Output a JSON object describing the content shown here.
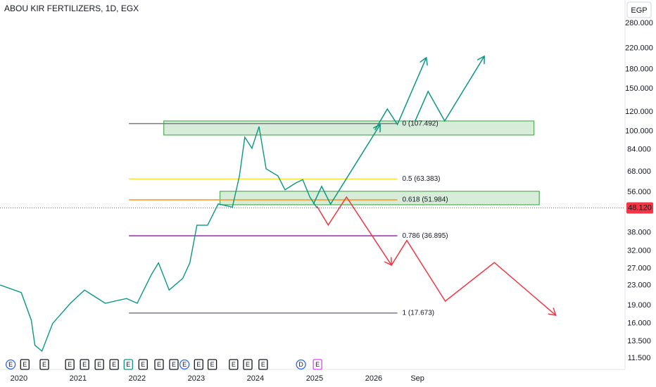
{
  "chart_data": {
    "type": "line",
    "title": "ABOU KIR FERTILIZERS, 1D, EGX",
    "currency": "EGP",
    "log_scale": true,
    "grid": false,
    "xlim": [
      2019.68,
      2030.25
    ],
    "xticks": [
      2020,
      2021,
      2022,
      2023,
      2024,
      2025,
      2026,
      {
        "value": 2026.74,
        "label": "Sep"
      }
    ],
    "ylim": [
      10.33,
      349
    ],
    "yticks": [
      {
        "value": 280,
        "label": "280.000"
      },
      {
        "value": 220,
        "label": "220.000"
      },
      {
        "value": 180,
        "label": "180.000"
      },
      {
        "value": 150,
        "label": "150.000"
      },
      {
        "value": 120,
        "label": "120.000"
      },
      {
        "value": 100,
        "label": "100.000"
      },
      {
        "value": 84,
        "label": "84.000"
      },
      {
        "value": 68,
        "label": "68.000"
      },
      {
        "value": 56,
        "label": "56.000"
      },
      {
        "value": 38,
        "label": "38.000"
      },
      {
        "value": 32,
        "label": "32.000"
      },
      {
        "value": 27,
        "label": "27.000"
      },
      {
        "value": 23,
        "label": "23.000"
      },
      {
        "value": 19,
        "label": "19.000"
      },
      {
        "value": 16,
        "label": "16.000"
      },
      {
        "value": 13.5,
        "label": "13.500"
      },
      {
        "value": 11.5,
        "label": "11.500"
      }
    ],
    "series": [
      {
        "color": "#089981",
        "x": [
          2019.68,
          2020.04,
          2020.21,
          2020.27,
          2020.39,
          2020.57,
          2020.87,
          2021.11,
          2021.46,
          2021.82,
          2022.0,
          2022.24,
          2022.36,
          2022.54,
          2022.77,
          2022.89,
          2023.01,
          2023.19,
          2023.37,
          2023.61,
          2023.73,
          2023.82,
          2023.94,
          2024.06,
          2024.18,
          2024.38,
          2024.5,
          2024.68,
          2024.8,
          2024.92,
          2025.04
        ],
        "values": [
          23.1,
          21.5,
          16.5,
          13.0,
          12.3,
          16,
          19.4,
          22,
          19.4,
          20.3,
          19.4,
          25.5,
          28.5,
          22,
          24.6,
          28.5,
          40.8,
          40.8,
          50,
          48.5,
          65.3,
          94.4,
          85,
          104.5,
          69.8,
          65.3,
          57.2,
          61,
          63,
          53.4,
          48.12
        ]
      }
    ],
    "last_price": {
      "value": 48.12,
      "label": "48.120",
      "color": "#f23645"
    },
    "fib_x": [
      2021.86,
      2026.4
    ],
    "fib_levels": [
      {
        "label": "0 (107.492)",
        "value": 107.492,
        "color": "#787b86"
      },
      {
        "label": "0.5 (63.383)",
        "value": 63.383,
        "color": "#f5e23a"
      },
      {
        "label": "0.618 (51.984)",
        "value": 51.984,
        "color": "#f7931a"
      },
      {
        "label": "0.786 (36.895)",
        "value": 36.895,
        "color": "#9c27b0"
      },
      {
        "label": "1 (17.673)",
        "value": 17.673,
        "color": "#787b86"
      }
    ],
    "zones": [
      {
        "x": [
          2022.45,
          2028.71
        ],
        "y": [
          96.4,
          110.2
        ],
        "color": "#4caf50"
      },
      {
        "x": [
          2023.4,
          2028.8
        ],
        "y": [
          49.6,
          56.4
        ],
        "color": "#4caf50"
      }
    ],
    "projections": [
      {
        "color": "#089981",
        "x": [
          2024.98,
          2025.12,
          2025.27,
          2026.11
        ],
        "values": [
          49.9,
          59.1,
          49.9,
          106.6
        ]
      },
      {
        "color": "#089981",
        "x": [
          2026.02,
          2026.23,
          2026.4,
          2026.89
        ],
        "values": [
          101.0,
          123.5,
          106.6,
          201.5
        ]
      },
      {
        "color": "#089981",
        "x": [
          2026.7,
          2026.92,
          2027.2,
          2027.87
        ],
        "values": [
          110.2,
          146.1,
          110.2,
          204.3
        ]
      },
      {
        "color": "#f23645",
        "x": [
          2025.04,
          2025.23,
          2025.54,
          2026.3
        ],
        "values": [
          48.9,
          40.9,
          53.4,
          27.9
        ]
      },
      {
        "color": "#f23645",
        "x": [
          2026.3,
          2026.56,
          2027.21,
          2028.04,
          2029.08
        ],
        "values": [
          27.9,
          35.3,
          19.8,
          28.6,
          17.3
        ]
      }
    ],
    "events": [
      {
        "x": 2019.86,
        "label": "E",
        "shape": "circle",
        "color": "#2962ff"
      },
      {
        "x": 2020.1,
        "label": "E",
        "shape": "box",
        "color": "#131722"
      },
      {
        "x": 2020.43,
        "label": "E",
        "shape": "box",
        "color": "#131722"
      },
      {
        "x": 2020.86,
        "label": "E",
        "shape": "box",
        "color": "#131722"
      },
      {
        "x": 2021.11,
        "label": "E",
        "shape": "box",
        "color": "#131722"
      },
      {
        "x": 2021.36,
        "label": "E",
        "shape": "box",
        "color": "#131722"
      },
      {
        "x": 2021.61,
        "label": "E",
        "shape": "box",
        "color": "#131722"
      },
      {
        "x": 2021.85,
        "label": "E",
        "shape": "box",
        "color": "#089981"
      },
      {
        "x": 2022.1,
        "label": "E",
        "shape": "box",
        "color": "#131722"
      },
      {
        "x": 2022.37,
        "label": "E",
        "shape": "box",
        "color": "#131722"
      },
      {
        "x": 2022.62,
        "label": "E",
        "shape": "box",
        "color": "#131722"
      },
      {
        "x": 2022.8,
        "label": "E",
        "shape": "circle",
        "color": "#2962ff"
      },
      {
        "x": 2023.04,
        "label": "E",
        "shape": "box",
        "color": "#131722"
      },
      {
        "x": 2023.27,
        "label": "E",
        "shape": "box",
        "color": "#131722"
      },
      {
        "x": 2023.63,
        "label": "E",
        "shape": "box",
        "color": "#131722"
      },
      {
        "x": 2023.87,
        "label": "E",
        "shape": "box",
        "color": "#131722"
      },
      {
        "x": 2024.13,
        "label": "E",
        "shape": "box",
        "color": "#131722"
      },
      {
        "x": 2024.77,
        "label": "D",
        "shape": "circle",
        "color": "#2962ff"
      },
      {
        "x": 2025.05,
        "label": "E",
        "shape": "box",
        "color": "#e040fb"
      }
    ]
  }
}
